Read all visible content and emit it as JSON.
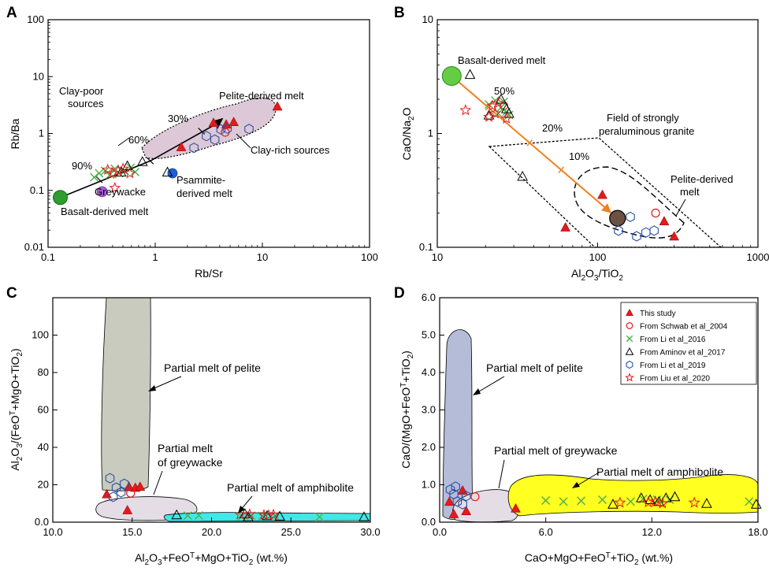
{
  "colors": {
    "triangle": "#e41a1c",
    "circle_open": "#e41a1c",
    "cross": "#4daf4a",
    "open_triangle": "#000000",
    "hexagon": "#2c4fa3",
    "star": "#e41a1c",
    "basalt": "#2e9e2e",
    "greywacke": "#a35cd6",
    "psammite": "#1f5fd6",
    "orange": "#f08020",
    "pelite_A": "#dcc8d6",
    "pelite_C": "#c8cbbe",
    "greywacke_field": "#e4dde6",
    "amph_C": "#40e8e8",
    "pelite_D": "#b4bcd8",
    "amph_D": "#ffff20"
  },
  "legend": [
    {
      "symbol": "triangle",
      "label": "This study"
    },
    {
      "symbol": "circle",
      "label": "From Schwab et al_2004"
    },
    {
      "symbol": "cross",
      "label": "From Li et al_2016"
    },
    {
      "symbol": "open-triangle",
      "label": "From Aminov et al_2017"
    },
    {
      "symbol": "hexagon",
      "label": "From Li et al_2019"
    },
    {
      "symbol": "star",
      "label": "From Liu et al_2020"
    }
  ],
  "chart_data": [
    {
      "panel": "A",
      "type": "scatter",
      "xscale": "log",
      "yscale": "log",
      "xlim": [
        0.1,
        100
      ],
      "ylim": [
        0.01,
        100
      ],
      "xlabel": "Rb/Sr",
      "ylabel": "Rb/Ba",
      "x_ticks": [
        "0.1",
        "1",
        "10",
        "100"
      ],
      "y_ticks": [
        "0.01",
        "0.1",
        "1",
        "10",
        "100"
      ],
      "annotations": {
        "clay_poor": "Clay-poor sources",
        "pelite_melt": "Pelite-derived melt",
        "clay_rich": "Clay-rich sources",
        "psammite": "Psammite-derived melt",
        "greywacke": "Greywacke",
        "basalt": "Basalt-derived melt",
        "p30": "30%",
        "p60": "60%",
        "p90": "90%"
      },
      "end_members": {
        "basalt": [
          0.13,
          0.075
        ],
        "greywacke": [
          0.32,
          0.095
        ],
        "psammite": [
          1.45,
          0.2
        ]
      },
      "mixing_line": [
        [
          0.13,
          0.075
        ],
        [
          0.9,
          0.33
        ],
        [
          3.9,
          1.55
        ]
      ],
      "series": [
        {
          "name": "This study",
          "symbol": "triangle",
          "points": [
            [
              1.75,
              0.58
            ],
            [
              3.5,
              1.55
            ],
            [
              4.6,
              1.45
            ],
            [
              5.4,
              1.6
            ],
            [
              13.8,
              3.0
            ]
          ]
        },
        {
          "name": "From Schwab et al_2004",
          "symbol": "circle",
          "points": [
            [
              4.5,
              1.05
            ]
          ]
        },
        {
          "name": "From Li et al_2016",
          "symbol": "cross",
          "points": [
            [
              0.27,
              0.17
            ],
            [
              0.3,
              0.2
            ],
            [
              0.34,
              0.22
            ],
            [
              0.38,
              0.19
            ],
            [
              0.42,
              0.24
            ],
            [
              0.46,
              0.2
            ],
            [
              0.52,
              0.22
            ],
            [
              0.59,
              0.25
            ],
            [
              0.65,
              0.21
            ]
          ]
        },
        {
          "name": "From Aminov et al_2017",
          "symbol": "open-triangle",
          "points": [
            [
              0.76,
              0.32
            ],
            [
              1.3,
              0.21
            ],
            [
              0.48,
              0.21
            ],
            [
              0.55,
              0.27
            ]
          ]
        },
        {
          "name": "From Li et al_2019",
          "symbol": "hexagon",
          "points": [
            [
              2.3,
              0.56
            ],
            [
              3.0,
              0.9
            ],
            [
              3.6,
              0.78
            ],
            [
              4.1,
              1.18
            ],
            [
              4.7,
              1.22
            ],
            [
              7.5,
              1.2
            ]
          ]
        },
        {
          "name": "From Liu et al_2020",
          "symbol": "star",
          "points": [
            [
              0.42,
              0.11
            ],
            [
              0.36,
              0.23
            ],
            [
              0.4,
              0.2
            ],
            [
              0.45,
              0.22
            ],
            [
              0.5,
              0.24
            ],
            [
              0.58,
              0.2
            ]
          ]
        }
      ]
    },
    {
      "panel": "B",
      "type": "scatter",
      "xscale": "log",
      "yscale": "log",
      "xlim": [
        10,
        1000
      ],
      "ylim": [
        0.1,
        10
      ],
      "xlabel": "Al2O3/TiO2",
      "ylabel": "CaO/Na2O",
      "x_ticks": [
        "10",
        "100",
        "1000"
      ],
      "y_ticks": [
        "0.1",
        "1",
        "10"
      ],
      "annotations": {
        "basalt": "Basalt-derived melt",
        "field": "Field of strongly",
        "field2": "peraluminous granite",
        "pelite": "Pelite-derived",
        "pelite2": "melt",
        "p50": "50%",
        "p20": "20%",
        "p10": "10%"
      },
      "end_members": {
        "basalt": [
          12.3,
          3.2
        ],
        "pelite": [
          133,
          0.18
        ]
      },
      "series": [
        {
          "name": "This study",
          "symbol": "triangle",
          "points": [
            [
              63,
              0.15
            ],
            [
              107,
              0.29
            ],
            [
              260,
              0.17
            ],
            [
              300,
              0.125
            ]
          ]
        },
        {
          "name": "From Schwab et al_2004",
          "symbol": "circle",
          "points": [
            [
              230,
              0.2
            ],
            [
              26,
              1.75
            ]
          ]
        },
        {
          "name": "From Li et al_2016",
          "symbol": "cross",
          "points": [
            [
              21,
              1.8
            ],
            [
              23,
              1.95
            ],
            [
              25,
              1.7
            ],
            [
              27,
              1.55
            ],
            [
              28,
              1.45
            ],
            [
              26,
              1.9
            ],
            [
              24,
              1.5
            ]
          ]
        },
        {
          "name": "From Aminov et al_2017",
          "symbol": "open-triangle",
          "points": [
            [
              16,
              3.3
            ],
            [
              21,
              1.45
            ],
            [
              34,
              0.42
            ],
            [
              27,
              1.65
            ],
            [
              25,
              2.0
            ],
            [
              28,
              1.5
            ]
          ]
        },
        {
          "name": "From Li et al_2019",
          "symbol": "hexagon",
          "points": [
            [
              135,
              0.14
            ],
            [
              160,
              0.185
            ],
            [
              175,
              0.125
            ],
            [
              200,
              0.135
            ],
            [
              225,
              0.14
            ]
          ]
        },
        {
          "name": "From Liu et al_2020",
          "symbol": "star",
          "points": [
            [
              15,
              1.6
            ],
            [
              21,
              1.4
            ],
            [
              23,
              1.5
            ],
            [
              27,
              1.35
            ],
            [
              24,
              1.85
            ],
            [
              22,
              1.75
            ]
          ]
        }
      ]
    },
    {
      "panel": "C",
      "type": "scatter",
      "xlim": [
        10,
        30
      ],
      "ylim": [
        0,
        120
      ],
      "xlabel": "Al2O3+FeOT+MgO+TiO2 (wt.%)",
      "ylabel": "Al2O3/(FeOT+MgO+TiO2)",
      "x_ticks": [
        "10.0",
        "15.0",
        "20.0",
        "25.0",
        "30.0"
      ],
      "y_ticks": [
        "0.0",
        "20",
        "40",
        "60",
        "80",
        "100"
      ],
      "annotations": {
        "pelite": "Partial melt of pelite",
        "greywacke": "Partial melt",
        "greywacke2": "of greywacke",
        "amphibolite": "Partial melt of amphibolite"
      },
      "series": [
        {
          "name": "This study",
          "symbol": "triangle",
          "points": [
            [
              13.4,
              15
            ],
            [
              14.7,
              6.5
            ],
            [
              14.8,
              19
            ],
            [
              15.2,
              18.5
            ],
            [
              15.5,
              19
            ]
          ]
        },
        {
          "name": "From Schwab et al_2004",
          "symbol": "circle",
          "points": [
            [
              14.9,
              15.5
            ]
          ]
        },
        {
          "name": "From Li et al_2016",
          "symbol": "cross",
          "points": [
            [
              18.5,
              3.5
            ],
            [
              19.2,
              3.6
            ],
            [
              21.9,
              3.1
            ],
            [
              22.5,
              3.5
            ],
            [
              23.2,
              3.3
            ],
            [
              24.0,
              3.3
            ],
            [
              26.8,
              2.8
            ]
          ]
        },
        {
          "name": "From Aminov et al_2017",
          "symbol": "open-triangle",
          "points": [
            [
              17.8,
              3.9
            ],
            [
              22.1,
              4.5
            ],
            [
              22.3,
              2.8
            ],
            [
              23.5,
              3.5
            ],
            [
              24.3,
              3.2
            ],
            [
              29.6,
              2.8
            ]
          ]
        },
        {
          "name": "From Li et al_2019",
          "symbol": "hexagon",
          "points": [
            [
              13.6,
              23.5
            ],
            [
              14.0,
              18.5
            ],
            [
              14.3,
              16
            ],
            [
              14.5,
              20.5
            ],
            [
              13.8,
              13.5
            ]
          ]
        },
        {
          "name": "From Liu et al_2020",
          "symbol": "star",
          "points": [
            [
              21.8,
              4.1
            ],
            [
              22.4,
              4.2
            ],
            [
              23.3,
              3.8
            ],
            [
              23.9,
              4.0
            ],
            [
              23.6,
              3.7
            ]
          ]
        }
      ]
    },
    {
      "panel": "D",
      "type": "scatter",
      "xlim": [
        0,
        18
      ],
      "ylim": [
        0,
        6
      ],
      "xlabel": "CaO+MgO+FeOT+TiO2 (wt.%)",
      "ylabel": "CaO/(MgO+FeOT+TiO2)",
      "x_ticks": [
        "0.0",
        "6.0",
        "12.0",
        "18.0"
      ],
      "y_ticks": [
        "0.0",
        "1.0",
        "2.0",
        "3.0",
        "4.0",
        "5.0",
        "6.0"
      ],
      "annotations": {
        "pelite": "Partial melt of pelite",
        "greywacke": "Partial melt of greywacke",
        "amphibolite": "Partial melt of amphibolite"
      },
      "series": [
        {
          "name": "This study",
          "symbol": "triangle",
          "points": [
            [
              0.55,
              0.55
            ],
            [
              0.8,
              0.22
            ],
            [
              1.3,
              0.85
            ],
            [
              1.5,
              0.3
            ],
            [
              4.3,
              0.37
            ]
          ]
        },
        {
          "name": "From Schwab et al_2004",
          "symbol": "circle",
          "points": [
            [
              2.0,
              0.68
            ]
          ]
        },
        {
          "name": "From Li et al_2016",
          "symbol": "cross",
          "points": [
            [
              6.0,
              0.58
            ],
            [
              7.0,
              0.55
            ],
            [
              8.0,
              0.57
            ],
            [
              9.2,
              0.6
            ],
            [
              10.8,
              0.55
            ],
            [
              11.5,
              0.62
            ],
            [
              12.3,
              0.6
            ],
            [
              13.0,
              0.6
            ],
            [
              17.5,
              0.55
            ]
          ]
        },
        {
          "name": "From Aminov et al_2017",
          "symbol": "open-triangle",
          "points": [
            [
              9.8,
              0.48
            ],
            [
              11.4,
              0.65
            ],
            [
              11.9,
              0.6
            ],
            [
              12.4,
              0.55
            ],
            [
              12.8,
              0.65
            ],
            [
              13.3,
              0.68
            ],
            [
              15.1,
              0.5
            ],
            [
              17.9,
              0.48
            ]
          ]
        },
        {
          "name": "From Li et al_2019",
          "symbol": "hexagon",
          "points": [
            [
              0.6,
              0.87
            ],
            [
              0.8,
              0.75
            ],
            [
              1.0,
              0.55
            ],
            [
              1.3,
              0.48
            ],
            [
              1.5,
              0.7
            ],
            [
              0.9,
              0.95
            ]
          ]
        },
        {
          "name": "From Liu et al_2020",
          "symbol": "star",
          "points": [
            [
              10.2,
              0.52
            ],
            [
              11.8,
              0.53
            ],
            [
              12.6,
              0.5
            ],
            [
              14.4,
              0.52
            ],
            [
              12.2,
              0.55
            ]
          ]
        }
      ]
    }
  ]
}
